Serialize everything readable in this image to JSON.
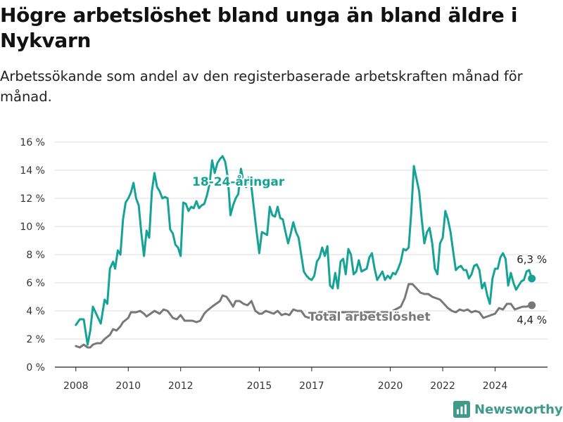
{
  "title": "Högre arbetslöshet bland unga än bland äldre i Nykvarn",
  "subtitle": "Arbetssökande som andel av den registerbaserade arbetskraften månad för månad.",
  "logo": {
    "text": "Newsworthy",
    "icon": "bar-chart-icon"
  },
  "chart_data": {
    "type": "line",
    "xlabel": "",
    "ylabel": "",
    "xlim": [
      2007.2,
      2026.0
    ],
    "ylim": [
      0,
      16
    ],
    "x_ticks": [
      2008,
      2010,
      2012,
      2015,
      2017,
      2020,
      2022,
      2024
    ],
    "y_ticks": [
      {
        "value": 0,
        "label": "0 %"
      },
      {
        "value": 2,
        "label": "2 %"
      },
      {
        "value": 4,
        "label": "4 %"
      },
      {
        "value": 6,
        "label": "6 %"
      },
      {
        "value": 8,
        "label": "8 %"
      },
      {
        "value": 10,
        "label": "10 %"
      },
      {
        "value": 12,
        "label": "12 %"
      },
      {
        "value": 14,
        "label": "14 %"
      },
      {
        "value": 16,
        "label": "16 %"
      }
    ],
    "grid": "horizontal",
    "series": [
      {
        "name": "18-24-åringar",
        "color": "#14a396",
        "last_label": "6,3 %",
        "points": [
          [
            2008.0,
            3.0
          ],
          [
            2008.15,
            3.4
          ],
          [
            2008.3,
            3.4
          ],
          [
            2008.45,
            1.6
          ],
          [
            2008.55,
            2.6
          ],
          [
            2008.65,
            4.3
          ],
          [
            2008.8,
            3.7
          ],
          [
            2008.95,
            3.1
          ],
          [
            2009.1,
            4.8
          ],
          [
            2009.2,
            4.5
          ],
          [
            2009.3,
            7.0
          ],
          [
            2009.42,
            7.5
          ],
          [
            2009.5,
            7.0
          ],
          [
            2009.6,
            8.3
          ],
          [
            2009.7,
            8.0
          ],
          [
            2009.8,
            10.5
          ],
          [
            2009.9,
            11.7
          ],
          [
            2010.0,
            12.0
          ],
          [
            2010.1,
            12.4
          ],
          [
            2010.2,
            13.1
          ],
          [
            2010.3,
            12.0
          ],
          [
            2010.4,
            11.5
          ],
          [
            2010.5,
            9.5
          ],
          [
            2010.6,
            7.9
          ],
          [
            2010.7,
            9.7
          ],
          [
            2010.8,
            9.2
          ],
          [
            2010.9,
            12.5
          ],
          [
            2011.0,
            13.8
          ],
          [
            2011.1,
            12.8
          ],
          [
            2011.2,
            12.5
          ],
          [
            2011.3,
            12.0
          ],
          [
            2011.4,
            12.1
          ],
          [
            2011.5,
            12.0
          ],
          [
            2011.6,
            9.8
          ],
          [
            2011.7,
            9.5
          ],
          [
            2011.8,
            8.7
          ],
          [
            2011.9,
            8.5
          ],
          [
            2012.0,
            7.9
          ],
          [
            2012.1,
            11.7
          ],
          [
            2012.2,
            11.6
          ],
          [
            2012.3,
            11.1
          ],
          [
            2012.4,
            11.4
          ],
          [
            2012.5,
            11.3
          ],
          [
            2012.6,
            11.8
          ],
          [
            2012.7,
            11.3
          ],
          [
            2012.8,
            11.5
          ],
          [
            2012.9,
            11.6
          ],
          [
            2013.0,
            12.2
          ],
          [
            2013.1,
            13.0
          ],
          [
            2013.2,
            14.7
          ],
          [
            2013.3,
            13.8
          ],
          [
            2013.4,
            14.5
          ],
          [
            2013.5,
            14.8
          ],
          [
            2013.6,
            15.0
          ],
          [
            2013.7,
            14.6
          ],
          [
            2013.8,
            13.5
          ],
          [
            2013.9,
            10.8
          ],
          [
            2014.0,
            11.5
          ],
          [
            2014.1,
            12.0
          ],
          [
            2014.2,
            12.3
          ],
          [
            2014.3,
            14.1
          ],
          [
            2014.4,
            13.2
          ],
          [
            2014.5,
            12.8
          ],
          [
            2014.6,
            13.5
          ],
          [
            2014.7,
            12.8
          ],
          [
            2014.8,
            11.2
          ],
          [
            2014.9,
            9.6
          ],
          [
            2015.0,
            8.1
          ],
          [
            2015.1,
            9.6
          ],
          [
            2015.2,
            9.5
          ],
          [
            2015.3,
            9.4
          ],
          [
            2015.4,
            11.4
          ],
          [
            2015.5,
            10.8
          ],
          [
            2015.6,
            10.7
          ],
          [
            2015.7,
            11.4
          ],
          [
            2015.8,
            10.6
          ],
          [
            2015.9,
            10.5
          ],
          [
            2016.0,
            9.6
          ],
          [
            2016.1,
            8.8
          ],
          [
            2016.2,
            9.5
          ],
          [
            2016.3,
            10.3
          ],
          [
            2016.4,
            9.6
          ],
          [
            2016.5,
            9.2
          ],
          [
            2016.6,
            8.0
          ],
          [
            2016.7,
            6.8
          ],
          [
            2016.8,
            6.5
          ],
          [
            2016.9,
            6.3
          ],
          [
            2017.0,
            6.2
          ],
          [
            2017.1,
            6.5
          ],
          [
            2017.2,
            7.5
          ],
          [
            2017.3,
            7.8
          ],
          [
            2017.4,
            8.5
          ],
          [
            2017.5,
            7.9
          ],
          [
            2017.6,
            8.6
          ],
          [
            2017.7,
            5.8
          ],
          [
            2017.8,
            5.6
          ],
          [
            2017.9,
            6.7
          ],
          [
            2018.0,
            5.6
          ],
          [
            2018.1,
            7.5
          ],
          [
            2018.2,
            7.7
          ],
          [
            2018.3,
            6.6
          ],
          [
            2018.4,
            8.4
          ],
          [
            2018.5,
            8.0
          ],
          [
            2018.6,
            6.6
          ],
          [
            2018.7,
            6.8
          ],
          [
            2018.8,
            7.6
          ],
          [
            2018.9,
            6.8
          ],
          [
            2019.0,
            6.9
          ],
          [
            2019.1,
            7.0
          ],
          [
            2019.2,
            7.8
          ],
          [
            2019.3,
            8.1
          ],
          [
            2019.4,
            7.0
          ],
          [
            2019.5,
            6.2
          ],
          [
            2019.6,
            6.5
          ],
          [
            2019.7,
            6.8
          ],
          [
            2019.8,
            6.2
          ],
          [
            2019.9,
            6.5
          ],
          [
            2020.0,
            6.3
          ],
          [
            2020.1,
            6.7
          ],
          [
            2020.2,
            6.6
          ],
          [
            2020.3,
            7.0
          ],
          [
            2020.4,
            7.5
          ],
          [
            2020.5,
            8.4
          ],
          [
            2020.6,
            8.3
          ],
          [
            2020.7,
            8.5
          ],
          [
            2020.8,
            11.0
          ],
          [
            2020.9,
            14.3
          ],
          [
            2021.0,
            13.4
          ],
          [
            2021.1,
            12.5
          ],
          [
            2021.2,
            10.5
          ],
          [
            2021.3,
            8.8
          ],
          [
            2021.4,
            9.6
          ],
          [
            2021.5,
            9.9
          ],
          [
            2021.6,
            8.8
          ],
          [
            2021.7,
            7.0
          ],
          [
            2021.8,
            6.6
          ],
          [
            2021.9,
            8.8
          ],
          [
            2022.0,
            9.2
          ],
          [
            2022.1,
            11.1
          ],
          [
            2022.2,
            10.5
          ],
          [
            2022.3,
            9.6
          ],
          [
            2022.4,
            8.2
          ],
          [
            2022.5,
            6.9
          ],
          [
            2022.6,
            7.1
          ],
          [
            2022.7,
            7.2
          ],
          [
            2022.8,
            6.9
          ],
          [
            2022.9,
            6.9
          ],
          [
            2023.0,
            6.3
          ],
          [
            2023.1,
            6.6
          ],
          [
            2023.2,
            7.2
          ],
          [
            2023.3,
            7.3
          ],
          [
            2023.4,
            6.9
          ],
          [
            2023.5,
            5.6
          ],
          [
            2023.6,
            6.0
          ],
          [
            2023.7,
            5.1
          ],
          [
            2023.8,
            4.5
          ],
          [
            2023.9,
            6.3
          ],
          [
            2024.0,
            7.0
          ],
          [
            2024.1,
            7.0
          ],
          [
            2024.2,
            7.8
          ],
          [
            2024.3,
            8.1
          ],
          [
            2024.4,
            7.7
          ],
          [
            2024.5,
            5.8
          ],
          [
            2024.6,
            6.7
          ],
          [
            2024.7,
            6.0
          ],
          [
            2024.8,
            5.5
          ],
          [
            2024.9,
            5.8
          ],
          [
            2025.0,
            6.1
          ],
          [
            2025.1,
            6.2
          ],
          [
            2025.2,
            6.8
          ],
          [
            2025.3,
            6.9
          ],
          [
            2025.4,
            6.3
          ]
        ]
      },
      {
        "name": "Total arbetslöshet",
        "color": "#787878",
        "last_label": "4,4 %",
        "points": [
          [
            2008.0,
            1.5
          ],
          [
            2008.15,
            1.4
          ],
          [
            2008.3,
            1.6
          ],
          [
            2008.45,
            1.4
          ],
          [
            2008.55,
            1.4
          ],
          [
            2008.65,
            1.6
          ],
          [
            2008.8,
            1.7
          ],
          [
            2008.95,
            1.7
          ],
          [
            2009.1,
            2.0
          ],
          [
            2009.3,
            2.3
          ],
          [
            2009.42,
            2.7
          ],
          [
            2009.55,
            2.6
          ],
          [
            2009.7,
            2.9
          ],
          [
            2009.8,
            3.2
          ],
          [
            2010.0,
            3.5
          ],
          [
            2010.1,
            3.9
          ],
          [
            2010.3,
            3.9
          ],
          [
            2010.45,
            4.0
          ],
          [
            2010.6,
            3.8
          ],
          [
            2010.7,
            3.6
          ],
          [
            2010.85,
            3.8
          ],
          [
            2011.0,
            4.0
          ],
          [
            2011.2,
            3.8
          ],
          [
            2011.35,
            4.1
          ],
          [
            2011.5,
            4.0
          ],
          [
            2011.7,
            3.5
          ],
          [
            2011.85,
            3.4
          ],
          [
            2012.0,
            3.7
          ],
          [
            2012.15,
            3.3
          ],
          [
            2012.3,
            3.3
          ],
          [
            2012.45,
            3.3
          ],
          [
            2012.6,
            3.2
          ],
          [
            2012.75,
            3.3
          ],
          [
            2012.9,
            3.8
          ],
          [
            2013.0,
            4.0
          ],
          [
            2013.2,
            4.3
          ],
          [
            2013.35,
            4.5
          ],
          [
            2013.5,
            4.7
          ],
          [
            2013.6,
            5.1
          ],
          [
            2013.75,
            5.0
          ],
          [
            2013.9,
            4.6
          ],
          [
            2014.0,
            4.3
          ],
          [
            2014.1,
            4.7
          ],
          [
            2014.25,
            4.7
          ],
          [
            2014.4,
            4.5
          ],
          [
            2014.55,
            4.4
          ],
          [
            2014.7,
            4.7
          ],
          [
            2014.85,
            4.0
          ],
          [
            2015.0,
            3.8
          ],
          [
            2015.1,
            3.8
          ],
          [
            2015.25,
            4.0
          ],
          [
            2015.4,
            3.9
          ],
          [
            2015.55,
            3.8
          ],
          [
            2015.7,
            4.0
          ],
          [
            2015.85,
            3.7
          ],
          [
            2016.0,
            3.8
          ],
          [
            2016.15,
            3.7
          ],
          [
            2016.3,
            4.1
          ],
          [
            2016.45,
            4.0
          ],
          [
            2016.6,
            4.0
          ],
          [
            2016.75,
            3.6
          ],
          [
            2016.9,
            3.5
          ],
          [
            2017.05,
            3.7
          ],
          [
            2017.2,
            3.8
          ],
          [
            2017.3,
            3.9
          ],
          [
            2019.8,
            3.9
          ],
          [
            2020.0,
            3.9
          ],
          [
            2020.2,
            4.1
          ],
          [
            2020.4,
            4.3
          ],
          [
            2020.55,
            4.9
          ],
          [
            2020.7,
            5.9
          ],
          [
            2020.85,
            5.9
          ],
          [
            2021.0,
            5.6
          ],
          [
            2021.15,
            5.3
          ],
          [
            2021.3,
            5.2
          ],
          [
            2021.45,
            5.2
          ],
          [
            2021.6,
            5.0
          ],
          [
            2021.75,
            4.9
          ],
          [
            2021.9,
            4.8
          ],
          [
            2022.05,
            4.5
          ],
          [
            2022.2,
            4.2
          ],
          [
            2022.35,
            4.0
          ],
          [
            2022.5,
            3.9
          ],
          [
            2022.65,
            4.1
          ],
          [
            2022.8,
            4.0
          ],
          [
            2022.95,
            4.1
          ],
          [
            2023.1,
            3.9
          ],
          [
            2023.25,
            4.0
          ],
          [
            2023.4,
            3.9
          ],
          [
            2023.55,
            3.5
          ],
          [
            2023.7,
            3.6
          ],
          [
            2023.85,
            3.7
          ],
          [
            2024.0,
            3.8
          ],
          [
            2024.15,
            4.2
          ],
          [
            2024.3,
            4.1
          ],
          [
            2024.45,
            4.5
          ],
          [
            2024.6,
            4.5
          ],
          [
            2024.75,
            4.1
          ],
          [
            2024.9,
            4.2
          ],
          [
            2025.05,
            4.3
          ],
          [
            2025.2,
            4.3
          ],
          [
            2025.4,
            4.4
          ]
        ]
      }
    ],
    "annotations": [
      {
        "text": "18-24-åringar",
        "series": 0,
        "x": 2014.2,
        "y": 13.2
      },
      {
        "text": "Total arbetslöshet",
        "series": 1,
        "x": 2019.2,
        "y": 3.6
      }
    ]
  }
}
